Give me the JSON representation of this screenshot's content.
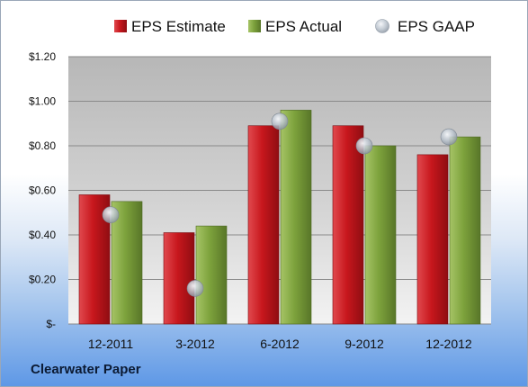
{
  "company": "Clearwater Paper",
  "colors": {
    "estimate": "#c8171d",
    "actual": "#7da23c",
    "gaap": "#b9c2cc"
  },
  "chart_data": {
    "type": "bar",
    "categories": [
      "12-2011",
      "3-2012",
      "6-2012",
      "9-2012",
      "12-2012"
    ],
    "series": [
      {
        "name": "EPS Estimate",
        "type": "bar",
        "values": [
          0.58,
          0.41,
          0.89,
          0.89,
          0.76
        ]
      },
      {
        "name": "EPS Actual",
        "type": "bar",
        "values": [
          0.55,
          0.44,
          0.96,
          0.8,
          0.84
        ]
      },
      {
        "name": "EPS GAAP",
        "type": "scatter",
        "values": [
          0.49,
          0.16,
          0.91,
          0.8,
          0.84
        ]
      }
    ],
    "ylim": [
      0,
      1.2
    ],
    "yticks": [
      0,
      0.2,
      0.4,
      0.6,
      0.8,
      1.0,
      1.2
    ],
    "ytick_labels": [
      "$-",
      "$0.20",
      "$0.40",
      "$0.60",
      "$0.80",
      "$1.00",
      "$1.20"
    ],
    "grid": true,
    "legend": "top"
  }
}
